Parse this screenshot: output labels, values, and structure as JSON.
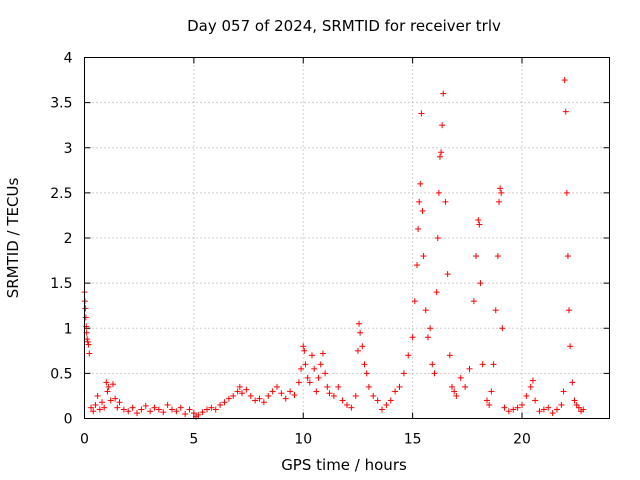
{
  "chart_data": {
    "type": "scatter",
    "title": "Day 057 of 2024, SRMTID for receiver trlv",
    "xlabel": "GPS time / hours",
    "ylabel": "SRMTID / TECUs",
    "xlim": [
      0,
      24
    ],
    "ylim": [
      0,
      4
    ],
    "xticks": [
      0,
      5,
      10,
      15,
      20
    ],
    "xtick_labels": [
      "0",
      "5",
      "10",
      "15",
      "20"
    ],
    "yticks": [
      0,
      0.5,
      1,
      1.5,
      2,
      2.5,
      3,
      3.5,
      4
    ],
    "ytick_labels": [
      "0",
      "0.5",
      "1",
      "1.5",
      "2",
      "2.5",
      "3",
      "3.5",
      "4"
    ],
    "grid": true,
    "marker": "+",
    "color": "#ff0000",
    "series": [
      {
        "name": "SRMTID",
        "points": [
          [
            0.0,
            1.4
          ],
          [
            0.02,
            1.3
          ],
          [
            0.04,
            1.22
          ],
          [
            0.06,
            1.12
          ],
          [
            0.08,
            1.02
          ],
          [
            0.1,
            0.95
          ],
          [
            0.12,
            0.88
          ],
          [
            0.15,
            0.85
          ],
          [
            0.18,
            0.82
          ],
          [
            0.22,
            0.72
          ],
          [
            0.3,
            0.12
          ],
          [
            0.4,
            0.08
          ],
          [
            0.5,
            0.15
          ],
          [
            0.6,
            0.25
          ],
          [
            0.7,
            0.1
          ],
          [
            0.8,
            0.18
          ],
          [
            0.9,
            0.12
          ],
          [
            1.0,
            0.4
          ],
          [
            1.05,
            0.3
          ],
          [
            1.1,
            0.35
          ],
          [
            1.2,
            0.2
          ],
          [
            1.3,
            0.38
          ],
          [
            1.4,
            0.22
          ],
          [
            1.5,
            0.12
          ],
          [
            1.6,
            0.18
          ],
          [
            1.8,
            0.1
          ],
          [
            2.0,
            0.08
          ],
          [
            2.2,
            0.12
          ],
          [
            2.4,
            0.06
          ],
          [
            2.6,
            0.1
          ],
          [
            2.8,
            0.14
          ],
          [
            3.0,
            0.08
          ],
          [
            3.2,
            0.12
          ],
          [
            3.4,
            0.1
          ],
          [
            3.6,
            0.07
          ],
          [
            3.8,
            0.15
          ],
          [
            4.0,
            0.1
          ],
          [
            4.2,
            0.08
          ],
          [
            4.4,
            0.12
          ],
          [
            4.6,
            0.05
          ],
          [
            4.8,
            0.1
          ],
          [
            5.0,
            0.06
          ],
          [
            5.1,
            0.02
          ],
          [
            5.2,
            0.04
          ],
          [
            5.4,
            0.07
          ],
          [
            5.6,
            0.1
          ],
          [
            5.8,
            0.12
          ],
          [
            6.0,
            0.1
          ],
          [
            6.2,
            0.15
          ],
          [
            6.4,
            0.18
          ],
          [
            6.6,
            0.22
          ],
          [
            6.8,
            0.25
          ],
          [
            7.0,
            0.3
          ],
          [
            7.1,
            0.35
          ],
          [
            7.2,
            0.28
          ],
          [
            7.4,
            0.32
          ],
          [
            7.6,
            0.25
          ],
          [
            7.8,
            0.2
          ],
          [
            8.0,
            0.22
          ],
          [
            8.2,
            0.18
          ],
          [
            8.4,
            0.25
          ],
          [
            8.6,
            0.3
          ],
          [
            8.8,
            0.35
          ],
          [
            9.0,
            0.28
          ],
          [
            9.2,
            0.22
          ],
          [
            9.4,
            0.3
          ],
          [
            9.6,
            0.26
          ],
          [
            9.8,
            0.4
          ],
          [
            9.9,
            0.55
          ],
          [
            10.0,
            0.8
          ],
          [
            10.05,
            0.75
          ],
          [
            10.1,
            0.6
          ],
          [
            10.2,
            0.45
          ],
          [
            10.3,
            0.4
          ],
          [
            10.4,
            0.7
          ],
          [
            10.5,
            0.55
          ],
          [
            10.6,
            0.3
          ],
          [
            10.7,
            0.45
          ],
          [
            10.8,
            0.6
          ],
          [
            10.9,
            0.72
          ],
          [
            11.0,
            0.5
          ],
          [
            11.1,
            0.35
          ],
          [
            11.2,
            0.28
          ],
          [
            11.4,
            0.25
          ],
          [
            11.6,
            0.35
          ],
          [
            11.8,
            0.2
          ],
          [
            12.0,
            0.15
          ],
          [
            12.2,
            0.12
          ],
          [
            12.4,
            0.25
          ],
          [
            12.5,
            0.75
          ],
          [
            12.55,
            1.05
          ],
          [
            12.6,
            0.95
          ],
          [
            12.7,
            0.8
          ],
          [
            12.8,
            0.6
          ],
          [
            12.9,
            0.5
          ],
          [
            13.0,
            0.35
          ],
          [
            13.2,
            0.25
          ],
          [
            13.4,
            0.2
          ],
          [
            13.6,
            0.1
          ],
          [
            13.8,
            0.15
          ],
          [
            14.0,
            0.2
          ],
          [
            14.2,
            0.3
          ],
          [
            14.4,
            0.35
          ],
          [
            14.6,
            0.5
          ],
          [
            14.8,
            0.7
          ],
          [
            15.0,
            0.9
          ],
          [
            15.1,
            1.3
          ],
          [
            15.2,
            1.7
          ],
          [
            15.25,
            2.1
          ],
          [
            15.3,
            2.4
          ],
          [
            15.35,
            2.6
          ],
          [
            15.4,
            3.38
          ],
          [
            15.45,
            2.3
          ],
          [
            15.5,
            1.8
          ],
          [
            15.6,
            1.2
          ],
          [
            15.7,
            0.9
          ],
          [
            15.8,
            1.0
          ],
          [
            15.9,
            0.6
          ],
          [
            16.0,
            0.5
          ],
          [
            16.1,
            1.4
          ],
          [
            16.15,
            2.0
          ],
          [
            16.2,
            2.5
          ],
          [
            16.25,
            2.9
          ],
          [
            16.3,
            2.95
          ],
          [
            16.35,
            3.25
          ],
          [
            16.4,
            3.6
          ],
          [
            16.5,
            2.4
          ],
          [
            16.6,
            1.6
          ],
          [
            16.7,
            0.7
          ],
          [
            16.8,
            0.35
          ],
          [
            16.9,
            0.3
          ],
          [
            17.0,
            0.25
          ],
          [
            17.2,
            0.45
          ],
          [
            17.4,
            0.35
          ],
          [
            17.6,
            0.55
          ],
          [
            17.8,
            1.3
          ],
          [
            17.9,
            1.8
          ],
          [
            18.0,
            2.2
          ],
          [
            18.05,
            2.15
          ],
          [
            18.1,
            1.5
          ],
          [
            18.2,
            0.6
          ],
          [
            18.4,
            0.2
          ],
          [
            18.5,
            0.15
          ],
          [
            18.6,
            0.3
          ],
          [
            18.7,
            0.6
          ],
          [
            18.8,
            1.2
          ],
          [
            18.9,
            1.8
          ],
          [
            18.95,
            2.4
          ],
          [
            19.0,
            2.55
          ],
          [
            19.05,
            2.5
          ],
          [
            19.1,
            1.0
          ],
          [
            19.2,
            0.12
          ],
          [
            19.4,
            0.08
          ],
          [
            19.6,
            0.1
          ],
          [
            19.8,
            0.12
          ],
          [
            20.0,
            0.15
          ],
          [
            20.2,
            0.25
          ],
          [
            20.4,
            0.35
          ],
          [
            20.5,
            0.42
          ],
          [
            20.6,
            0.2
          ],
          [
            20.8,
            0.08
          ],
          [
            21.0,
            0.1
          ],
          [
            21.2,
            0.12
          ],
          [
            21.4,
            0.06
          ],
          [
            21.6,
            0.1
          ],
          [
            21.8,
            0.15
          ],
          [
            21.9,
            0.3
          ],
          [
            21.95,
            3.75
          ],
          [
            22.0,
            3.4
          ],
          [
            22.05,
            2.5
          ],
          [
            22.1,
            1.8
          ],
          [
            22.15,
            1.2
          ],
          [
            22.2,
            0.8
          ],
          [
            22.3,
            0.4
          ],
          [
            22.4,
            0.2
          ],
          [
            22.5,
            0.15
          ],
          [
            22.6,
            0.12
          ],
          [
            22.7,
            0.08
          ],
          [
            22.8,
            0.1
          ]
        ]
      }
    ]
  }
}
